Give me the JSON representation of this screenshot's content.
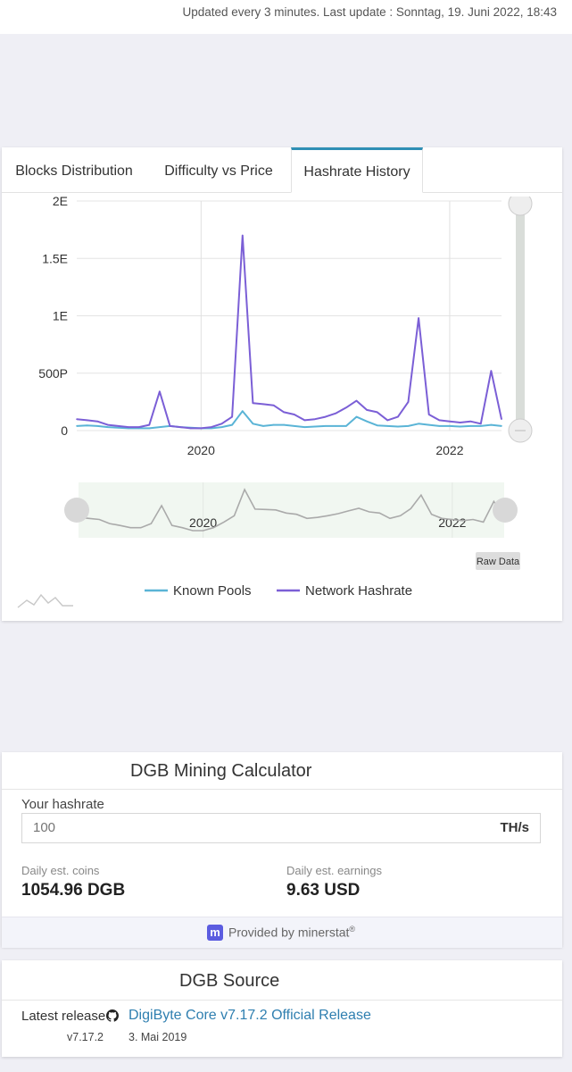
{
  "update": {
    "text": "Updated every 3 minutes. Last update : Sonntag, 19. Juni 2022, 18:43"
  },
  "tabs": [
    {
      "label": "Blocks Distribution"
    },
    {
      "label": "Difficulty vs Price"
    },
    {
      "label": "Hashrate History",
      "active": true
    }
  ],
  "chart_data": {
    "type": "line",
    "title": "",
    "xlabel": "",
    "ylabel": "",
    "x_ticks": [
      "2020",
      "2022"
    ],
    "y_ticks": [
      "0",
      "500P",
      "1E",
      "1.5E",
      "2E"
    ],
    "ylim": [
      0,
      2000
    ],
    "y_unit": "P",
    "x": [
      "2019-01",
      "2019-02",
      "2019-03",
      "2019-04",
      "2019-05",
      "2019-06",
      "2019-07",
      "2019-08",
      "2019-09",
      "2019-10",
      "2019-11",
      "2019-12",
      "2020-01",
      "2020-02",
      "2020-03",
      "2020-04",
      "2020-05",
      "2020-06",
      "2020-07",
      "2020-08",
      "2020-09",
      "2020-10",
      "2020-11",
      "2020-12",
      "2021-01",
      "2021-02",
      "2021-03",
      "2021-04",
      "2021-05",
      "2021-06",
      "2021-07",
      "2021-08",
      "2021-09",
      "2021-10",
      "2021-11",
      "2021-12",
      "2022-01",
      "2022-02",
      "2022-03",
      "2022-04",
      "2022-05",
      "2022-06"
    ],
    "series": [
      {
        "name": "Known Pools",
        "color": "#5ab4d6",
        "values": [
          40,
          45,
          40,
          30,
          25,
          20,
          20,
          20,
          30,
          40,
          30,
          25,
          20,
          20,
          30,
          50,
          170,
          60,
          40,
          50,
          50,
          40,
          30,
          35,
          40,
          40,
          40,
          120,
          80,
          45,
          40,
          35,
          40,
          60,
          50,
          40,
          40,
          35,
          40,
          40,
          50,
          40
        ]
      },
      {
        "name": "Network Hashrate",
        "color": "#7b5fd6",
        "values": [
          100,
          90,
          80,
          50,
          40,
          30,
          30,
          50,
          340,
          40,
          30,
          20,
          20,
          30,
          60,
          120,
          1700,
          240,
          230,
          220,
          160,
          140,
          90,
          100,
          120,
          150,
          200,
          260,
          180,
          160,
          90,
          120,
          250,
          980,
          140,
          90,
          80,
          70,
          80,
          60,
          520,
          100
        ]
      }
    ],
    "navigator": {
      "x_ticks": [
        "2020",
        "2022"
      ],
      "color": "#aaaaaa"
    },
    "legend": {
      "placement": "bottom-center"
    },
    "raw_data_label": "Raw Data"
  },
  "calculator": {
    "title": "DGB Mining Calculator",
    "hashrate_label": "Your hashrate",
    "hashrate_placeholder": "100",
    "unit": "TH/s",
    "coins_label": "Daily est. coins",
    "coins_value": "1054.96 DGB",
    "earnings_label": "Daily est. earnings",
    "earnings_value": "9.63 USD",
    "provided": "Provided by minerstat",
    "provided_mark": "®",
    "logo_letter": "m"
  },
  "source": {
    "title": "DGB Source",
    "latest_label": "Latest release",
    "release_link": "DigiByte Core v7.17.2 Official Release",
    "version": "v7.17.2",
    "date": "3. Mai 2019"
  }
}
